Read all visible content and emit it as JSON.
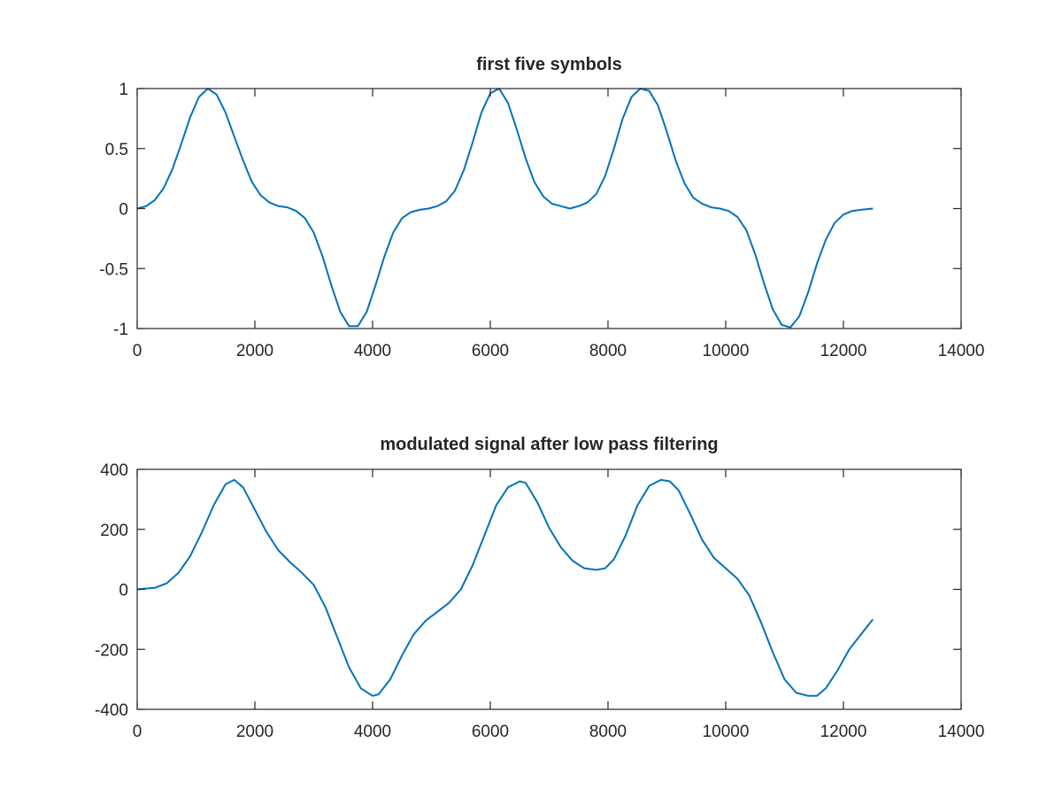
{
  "colors": {
    "line": "#0072bd",
    "axis": "#262626",
    "background": "#ffffff"
  },
  "chart_data": [
    {
      "type": "line",
      "title": "first five symbols",
      "xlabel": "",
      "ylabel": "",
      "xlim": [
        0,
        14000
      ],
      "ylim": [
        -1,
        1
      ],
      "grid": false,
      "xticks": [
        0,
        2000,
        4000,
        6000,
        8000,
        10000,
        12000,
        14000
      ],
      "xtick_labels": [
        "0",
        "2000",
        "4000",
        "6000",
        "8000",
        "10000",
        "12000",
        "14000"
      ],
      "yticks": [
        -1,
        -0.5,
        0,
        0.5,
        1
      ],
      "ytick_labels": [
        "-1",
        "-0.5",
        "0",
        "0.5",
        "1"
      ],
      "series": [
        {
          "x": [
            0,
            150,
            300,
            450,
            600,
            750,
            900,
            1050,
            1200,
            1350,
            1500,
            1650,
            1800,
            1950,
            2100,
            2250,
            2400,
            2550,
            2700,
            2850,
            3000,
            3150,
            3300,
            3450,
            3600,
            3750,
            3900,
            4050,
            4200,
            4350,
            4500,
            4650,
            4800,
            4950,
            5100,
            5250,
            5400,
            5550,
            5700,
            5850,
            6000,
            6150,
            6300,
            6450,
            6600,
            6750,
            6900,
            7050,
            7200,
            7350,
            7500,
            7650,
            7800,
            7950,
            8100,
            8250,
            8400,
            8550,
            8700,
            8850,
            9000,
            9150,
            9300,
            9450,
            9600,
            9750,
            9900,
            10050,
            10200,
            10350,
            10500,
            10650,
            10800,
            10950,
            11100,
            11250,
            11400,
            11550,
            11700,
            11850,
            12000,
            12150,
            12300,
            12500
          ],
          "y": [
            0,
            0.02,
            0.07,
            0.17,
            0.33,
            0.54,
            0.76,
            0.93,
            1,
            0.95,
            0.8,
            0.6,
            0.4,
            0.22,
            0.11,
            0.05,
            0.02,
            0.01,
            -0.02,
            -0.08,
            -0.2,
            -0.4,
            -0.64,
            -0.86,
            -0.98,
            -0.98,
            -0.86,
            -0.64,
            -0.4,
            -0.2,
            -0.08,
            -0.03,
            -0.01,
            0,
            0.02,
            0.06,
            0.15,
            0.32,
            0.55,
            0.8,
            0.96,
            1,
            0.88,
            0.66,
            0.42,
            0.22,
            0.1,
            0.04,
            0.02,
            0,
            0.02,
            0.05,
            0.12,
            0.27,
            0.5,
            0.75,
            0.93,
            1,
            0.98,
            0.86,
            0.64,
            0.4,
            0.21,
            0.09,
            0.04,
            0.01,
            0,
            -0.02,
            -0.07,
            -0.18,
            -0.38,
            -0.62,
            -0.84,
            -0.97,
            -0.99,
            -0.9,
            -0.7,
            -0.46,
            -0.26,
            -0.12,
            -0.05,
            -0.02,
            -0.01,
            0
          ]
        }
      ]
    },
    {
      "type": "line",
      "title": "modulated signal after low pass filtering",
      "xlabel": "",
      "ylabel": "",
      "xlim": [
        0,
        14000
      ],
      "ylim": [
        -400,
        400
      ],
      "grid": false,
      "xticks": [
        0,
        2000,
        4000,
        6000,
        8000,
        10000,
        12000,
        14000
      ],
      "xtick_labels": [
        "0",
        "2000",
        "4000",
        "6000",
        "8000",
        "10000",
        "12000",
        "14000"
      ],
      "yticks": [
        -400,
        -200,
        0,
        200,
        400
      ],
      "ytick_labels": [
        "-400",
        "-200",
        "0",
        "200",
        "400"
      ],
      "series": [
        {
          "x": [
            0,
            300,
            500,
            700,
            900,
            1100,
            1300,
            1500,
            1650,
            1800,
            2000,
            2200,
            2400,
            2600,
            2800,
            3000,
            3200,
            3400,
            3600,
            3800,
            4000,
            4100,
            4300,
            4500,
            4700,
            4900,
            5100,
            5300,
            5500,
            5700,
            5900,
            6100,
            6300,
            6500,
            6600,
            6800,
            7000,
            7200,
            7400,
            7600,
            7800,
            7950,
            8100,
            8300,
            8500,
            8700,
            8900,
            9050,
            9200,
            9400,
            9600,
            9800,
            10000,
            10200,
            10400,
            10600,
            10800,
            11000,
            11200,
            11400,
            11550,
            11700,
            11900,
            12100,
            12300,
            12500
          ],
          "y": [
            0,
            5,
            20,
            55,
            110,
            190,
            280,
            350,
            365,
            340,
            265,
            190,
            130,
            90,
            55,
            15,
            -60,
            -160,
            -260,
            -330,
            -355,
            -350,
            -300,
            -220,
            -150,
            -105,
            -75,
            -45,
            0,
            80,
            180,
            280,
            340,
            360,
            355,
            290,
            205,
            140,
            95,
            70,
            65,
            70,
            100,
            180,
            280,
            345,
            365,
            360,
            330,
            250,
            165,
            105,
            70,
            35,
            -20,
            -110,
            -210,
            -300,
            -345,
            -355,
            -355,
            -330,
            -270,
            -200,
            -150,
            -100
          ]
        }
      ]
    }
  ]
}
